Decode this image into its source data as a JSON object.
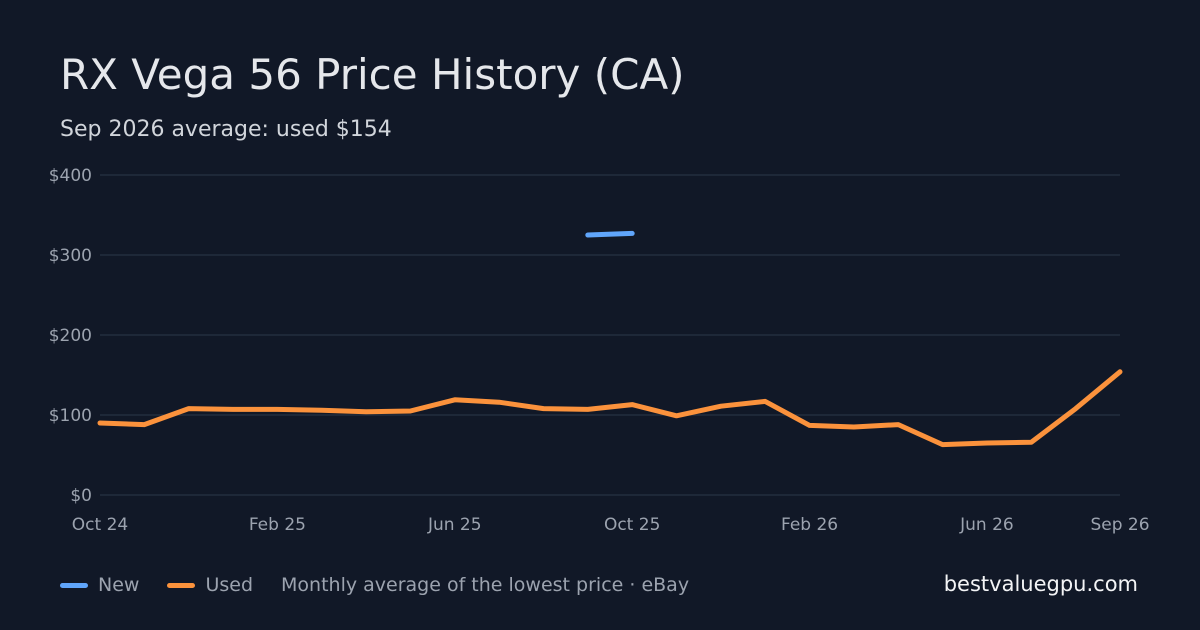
{
  "chart_data": {
    "type": "line",
    "title": "RX Vega 56 Price History (CA)",
    "subtitle": "Sep 2026 average: used $154",
    "xlabel": "",
    "ylabel": "",
    "x": [
      "Oct 24",
      "Nov 24",
      "Dec 24",
      "Jan 25",
      "Feb 25",
      "Mar 25",
      "Apr 25",
      "May 25",
      "Jun 25",
      "Jul 25",
      "Aug 25",
      "Sep 25",
      "Oct 25",
      "Nov 25",
      "Dec 25",
      "Jan 26",
      "Feb 26",
      "Mar 26",
      "Apr 26",
      "May 26",
      "Jun 26",
      "Jul 26",
      "Aug 26",
      "Sep 26"
    ],
    "x_tick_labels": [
      "Oct 24",
      "Feb 25",
      "Jun 25",
      "Oct 25",
      "Feb 26",
      "Jun 26",
      "Sep 26"
    ],
    "x_tick_index": [
      0,
      4,
      8,
      12,
      16,
      20,
      23
    ],
    "y_tick_labels": [
      "$0",
      "$100",
      "$200",
      "$300",
      "$400"
    ],
    "y_tick_values": [
      0,
      100,
      200,
      300,
      400
    ],
    "ylim": [
      0,
      400
    ],
    "grid": true,
    "series": [
      {
        "name": "New",
        "color": "#60a5fa",
        "values": [
          null,
          null,
          null,
          null,
          null,
          null,
          null,
          null,
          null,
          null,
          null,
          325,
          327,
          null,
          null,
          null,
          null,
          null,
          null,
          null,
          null,
          null,
          null,
          null
        ]
      },
      {
        "name": "Used",
        "color": "#fb923c",
        "values": [
          90,
          88,
          108,
          107,
          107,
          106,
          104,
          105,
          119,
          116,
          108,
          107,
          113,
          99,
          111,
          117,
          87,
          85,
          88,
          63,
          65,
          66,
          108,
          154
        ]
      }
    ]
  },
  "footer": {
    "note": "Monthly average of the lowest price · eBay",
    "brand": "bestvaluegpu.com"
  }
}
